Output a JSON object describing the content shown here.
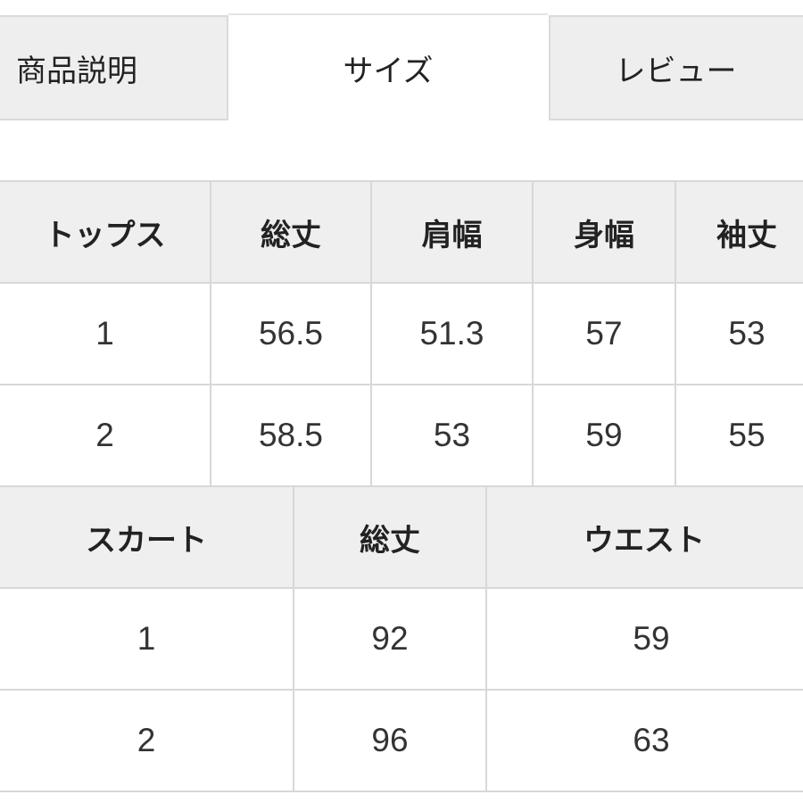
{
  "tabs": [
    {
      "label": "商品説明",
      "active": false
    },
    {
      "label": "サイズ",
      "active": true
    },
    {
      "label": "レビュー",
      "active": false
    }
  ],
  "tops_table": {
    "headers": [
      "トップス",
      "総丈",
      "肩幅",
      "身幅",
      "袖丈"
    ],
    "rows": [
      [
        "1",
        "56.5",
        "51.3",
        "57",
        "53"
      ],
      [
        "2",
        "58.5",
        "53",
        "59",
        "55"
      ]
    ]
  },
  "skirt_table": {
    "headers": [
      "スカート",
      "総丈",
      "ウエスト"
    ],
    "rows": [
      [
        "1",
        "92",
        "59"
      ],
      [
        "2",
        "96",
        "63"
      ]
    ]
  },
  "colors": {
    "header_bg": "#efefef",
    "border": "#d8d8d8"
  }
}
